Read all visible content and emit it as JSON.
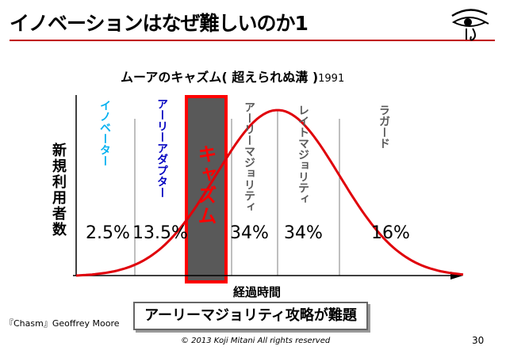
{
  "slide": {
    "title": "イノベーションはなぜ難しいのか1",
    "chart_title": "ムーアのキャズム( 超えられぬ溝 )",
    "chart_title_year": "1991",
    "y_label": "新規利用者数",
    "x_label": "経過時間",
    "strategy": "アーリーマジョリティ攻略が難題",
    "source": "『Chasm』Geoffrey Moore",
    "copyright": "© 2013 Koji Mitani All rights reserved",
    "page_number": "30",
    "logo_icon": "eye-of-horus-icon"
  },
  "chart_data": {
    "type": "area",
    "segments": [
      {
        "name": "イノベーター",
        "share": "2.5%",
        "color": "#00b0f0"
      },
      {
        "name": "アーリーアダプター",
        "share": "13.5%",
        "color": "#0000c0"
      },
      {
        "name": "キャズム",
        "share": "",
        "color": "#ff0000"
      },
      {
        "name": "アーリーマジョリティ",
        "share": "34%",
        "color": "#595959"
      },
      {
        "name": "レイトマジョリティ",
        "share": "34%",
        "color": "#595959"
      },
      {
        "name": "ラガード",
        "share": "16%",
        "color": "#595959"
      }
    ],
    "curve": "normal-distribution",
    "curve_color": "#e0000a",
    "chasm_fill": "#595959",
    "grid": false
  }
}
